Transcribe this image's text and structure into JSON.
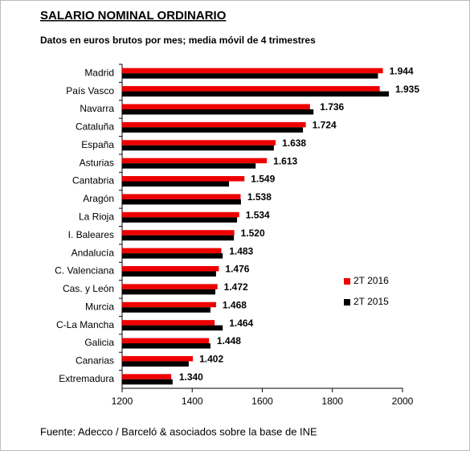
{
  "chart_data": {
    "type": "barh",
    "title": "SALARIO NOMINAL ORDINARIO",
    "subtitle": "Datos en euros brutos por mes; media móvil de 4 trimestres",
    "source": "Fuente: Adecco / Barceló & asociados sobre la base de INE",
    "categories": [
      "Madrid",
      "País Vasco",
      "Navarra",
      "Cataluña",
      "España",
      "Asturias",
      "Cantabria",
      "Aragón",
      "La Rioja",
      "I. Baleares",
      "Andalucía",
      "C. Valenciana",
      "Cas. y León",
      "Murcia",
      "C-La Mancha",
      "Galicia",
      "Canarias",
      "Extremadura"
    ],
    "series": [
      {
        "name": "2T 2016",
        "color": "#ee0000",
        "values": [
          1944,
          1935,
          1736,
          1724,
          1638,
          1613,
          1549,
          1538,
          1534,
          1520,
          1483,
          1476,
          1472,
          1468,
          1464,
          1448,
          1402,
          1340
        ],
        "value_labels": [
          "1.944",
          "1.935",
          "1.736",
          "1.724",
          "1.638",
          "1.613",
          "1.549",
          "1.538",
          "1.534",
          "1.520",
          "1.483",
          "1.476",
          "1.472",
          "1.468",
          "1.464",
          "1.448",
          "1.402",
          "1.340"
        ]
      },
      {
        "name": "2T 2015",
        "color": "#000000",
        "values": [
          1930,
          1961,
          1746,
          1716,
          1633,
          1581,
          1505,
          1539,
          1528,
          1519,
          1487,
          1468,
          1466,
          1452,
          1487,
          1452,
          1390,
          1344
        ]
      }
    ],
    "xlim": [
      1200,
      2000
    ],
    "xticks": [
      1200,
      1400,
      1600,
      1800,
      2000
    ],
    "legend": "right"
  }
}
